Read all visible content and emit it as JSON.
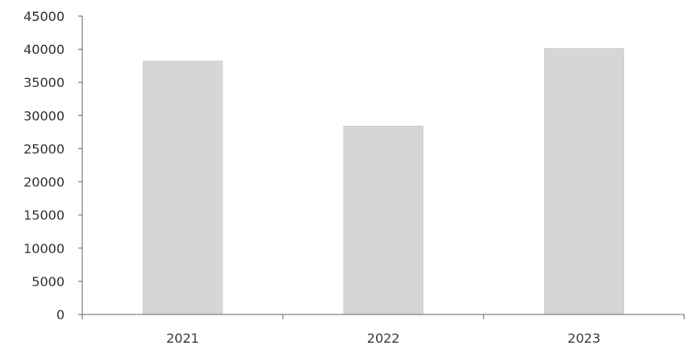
{
  "chart_data": {
    "type": "bar",
    "title": "",
    "xlabel": "",
    "ylabel": "",
    "categories": [
      "2021",
      "2022",
      "2023"
    ],
    "values": [
      38200,
      28400,
      40100
    ],
    "ylim": [
      0,
      45000
    ],
    "yticks": [
      "0",
      "5000",
      "10000",
      "15000",
      "20000",
      "25000",
      "30000",
      "35000",
      "40000",
      "45000"
    ],
    "grid": false,
    "legend": "none",
    "colors": {
      "bar": "#d6d6d6",
      "bar_stroke": "#c8c8c8",
      "axis": "#555555",
      "text": "#333333"
    }
  }
}
